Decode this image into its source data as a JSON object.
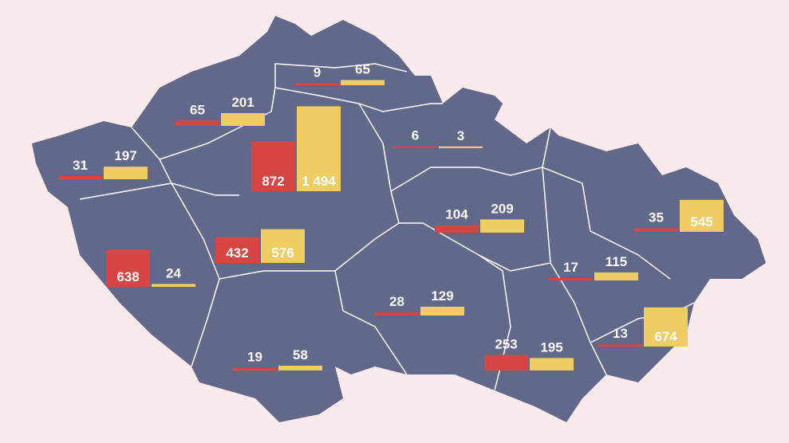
{
  "chart_data": {
    "type": "map-bars",
    "series": [
      {
        "color": "#d64541",
        "values": [
          9,
          65,
          6,
          31,
          872,
          104,
          35,
          432,
          638,
          17,
          28,
          13,
          253,
          19
        ]
      },
      {
        "color": "#f0cd62",
        "values": [
          65,
          201,
          3,
          197,
          1494,
          209,
          545,
          576,
          24,
          115,
          129,
          674,
          195,
          58
        ],
        "value_labels": [
          "65",
          "201",
          "3",
          "197",
          "1 494",
          "209",
          "545",
          "576",
          "24",
          "115",
          "129",
          "674",
          "195",
          "58"
        ]
      }
    ]
  }
}
